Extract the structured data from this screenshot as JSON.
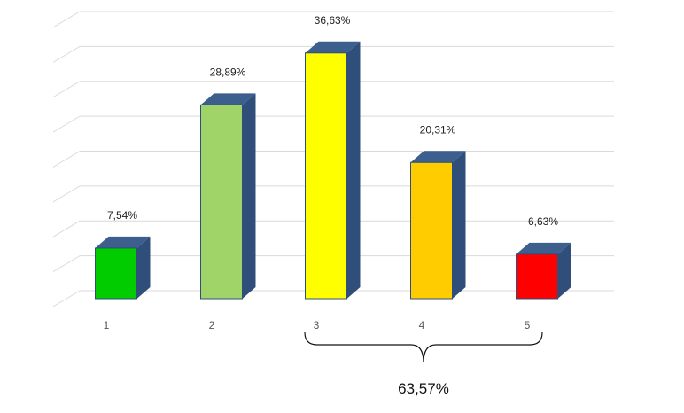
{
  "chart_data": {
    "type": "bar",
    "categories": [
      "1",
      "2",
      "3",
      "4",
      "5"
    ],
    "values": [
      7.54,
      28.89,
      36.63,
      20.31,
      6.63
    ],
    "data_labels": [
      "7,54%",
      "28,89%",
      "36,63%",
      "20,31%",
      "6,63%"
    ],
    "colors": [
      "#00cc00",
      "#a0d468",
      "#ffff00",
      "#ffcc00",
      "#ff0000"
    ],
    "side_color": "#2f4f7a",
    "top_color": "#3d5f8e",
    "title": "",
    "xlabel": "",
    "ylabel": "",
    "ylim": [
      0,
      40
    ],
    "grid": true,
    "style": "3d-column",
    "annotation": {
      "text": "63,57%",
      "from_category": "3",
      "to_category": "5",
      "type": "brace"
    }
  }
}
